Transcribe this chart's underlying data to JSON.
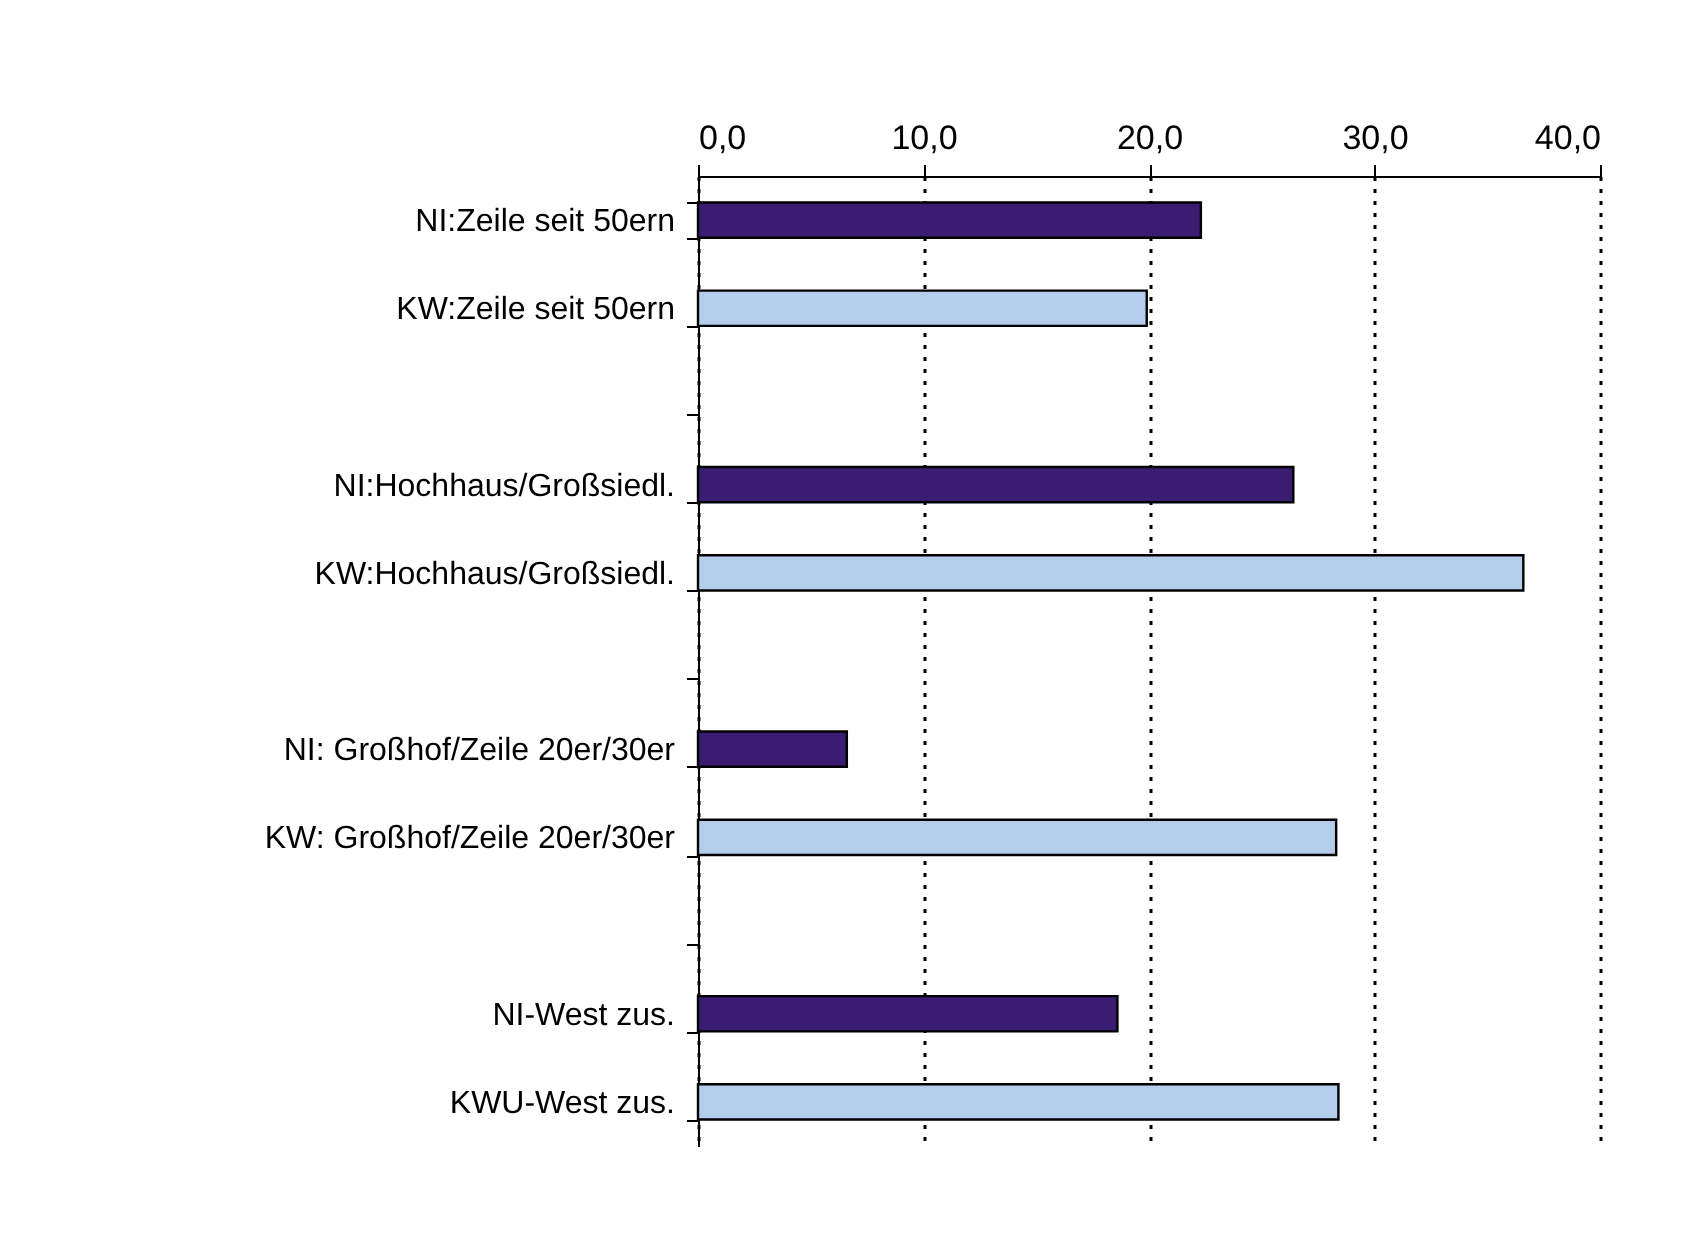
{
  "chart_data": {
    "type": "bar",
    "orientation": "horizontal",
    "categories": [
      "NI:Zeile seit 50ern",
      "KW:Zeile seit 50ern",
      null,
      "NI:Hochhaus/Großsiedl.",
      "KW:Hochhaus/Großsiedl.",
      null,
      "NI: Großhof/Zeile 20er/30er",
      "KW: Großhof/Zeile 20er/30er",
      null,
      "NI-West zus.",
      "KWU-West zus."
    ],
    "values": [
      22.3,
      19.9,
      null,
      26.4,
      36.6,
      null,
      6.6,
      28.3,
      null,
      18.6,
      28.4
    ],
    "colors": [
      "#3a1c73",
      "#b3cdea",
      null,
      "#3a1c73",
      "#b3cdea",
      null,
      "#3a1c73",
      "#b3cdea",
      null,
      "#3a1c73",
      "#b3cdea"
    ],
    "xlim": [
      0,
      40
    ],
    "xticks": [
      {
        "value": 0,
        "label": "0,0"
      },
      {
        "value": 10,
        "label": "10,0"
      },
      {
        "value": 20,
        "label": "20,0"
      },
      {
        "value": 30,
        "label": "30,0"
      },
      {
        "value": 40,
        "label": "40,0"
      }
    ],
    "grid": "x"
  }
}
